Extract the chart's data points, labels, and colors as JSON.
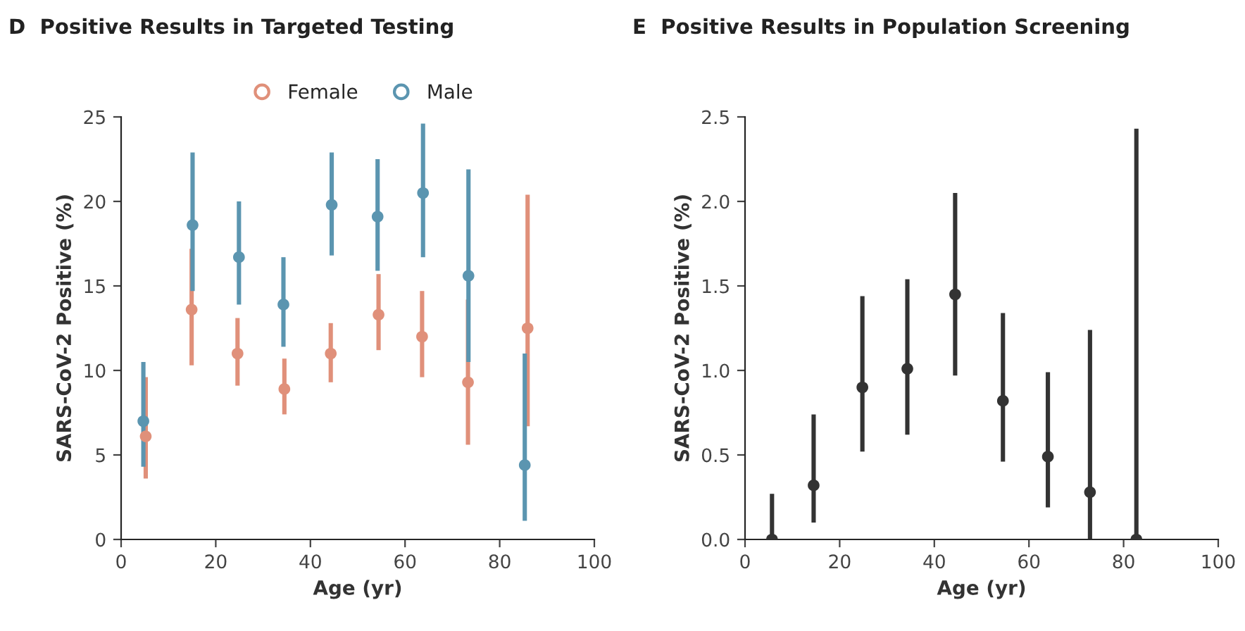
{
  "chart_data": [
    {
      "type": "scatter",
      "title": "D  Positive Results in Targeted Testing",
      "xlabel": "Age (yr)",
      "ylabel": "SARS-CoV-2 Positive (%)",
      "xlim": [
        0,
        100
      ],
      "xticks": [
        0,
        20,
        40,
        60,
        80,
        100
      ],
      "ylim": [
        0,
        25
      ],
      "yticks": [
        0,
        5,
        10,
        15,
        20,
        25
      ],
      "grid": false,
      "legend": "top",
      "marker": "circle",
      "series": [
        {
          "name": "Female",
          "color": "#e0907a",
          "x": [
            5.2,
            14.9,
            24.6,
            34.5,
            44.3,
            54.4,
            63.6,
            73.3,
            85.9
          ],
          "values": [
            6.1,
            13.6,
            11.0,
            8.9,
            11.0,
            13.3,
            12.0,
            9.3,
            12.5
          ],
          "errors": [
            [
              3.6,
              9.6
            ],
            [
              10.3,
              17.2
            ],
            [
              9.1,
              13.1
            ],
            [
              7.4,
              10.7
            ],
            [
              9.3,
              12.8
            ],
            [
              11.2,
              15.7
            ],
            [
              9.6,
              14.7
            ],
            [
              5.6,
              14.2
            ],
            [
              6.7,
              20.4
            ]
          ]
        },
        {
          "name": "Male",
          "color": "#5b95b0",
          "x": [
            4.7,
            15.1,
            24.9,
            34.3,
            44.5,
            54.2,
            63.8,
            73.4,
            85.3
          ],
          "values": [
            7.0,
            18.6,
            16.7,
            13.9,
            19.8,
            19.1,
            20.5,
            15.6,
            4.4
          ],
          "errors": [
            [
              4.3,
              10.5
            ],
            [
              14.7,
              22.9
            ],
            [
              13.9,
              20.0
            ],
            [
              11.4,
              16.7
            ],
            [
              16.8,
              22.9
            ],
            [
              15.9,
              22.5
            ],
            [
              16.7,
              24.6
            ],
            [
              10.5,
              21.9
            ],
            [
              1.1,
              11.0
            ]
          ]
        }
      ]
    },
    {
      "type": "scatter",
      "title": "E  Positive Results in Population Screening",
      "xlabel": "Age (yr)",
      "ylabel": "SARS-CoV-2 Positive (%)",
      "xlim": [
        0,
        100
      ],
      "xticks": [
        0,
        20,
        40,
        60,
        80,
        100
      ],
      "ylim": [
        0,
        2.5
      ],
      "yticks": [
        {
          "value": 0,
          "label": "0.0"
        },
        0.5,
        {
          "value": 1,
          "label": "1.0"
        },
        1.5,
        {
          "value": 2,
          "label": "2.0"
        },
        2.5
      ],
      "grid": false,
      "legend": false,
      "marker": "circle",
      "series": [
        {
          "color": "#333333",
          "x": [
            5.7,
            14.5,
            24.8,
            34.3,
            44.4,
            54.5,
            64.0,
            72.9,
            82.7
          ],
          "values": [
            0.0,
            0.32,
            0.9,
            1.01,
            1.45,
            0.82,
            0.49,
            0.28,
            0.0
          ],
          "errors": [
            [
              0.0,
              0.27
            ],
            [
              0.1,
              0.74
            ],
            [
              0.52,
              1.44
            ],
            [
              0.62,
              1.54
            ],
            [
              0.97,
              2.05
            ],
            [
              0.46,
              1.34
            ],
            [
              0.19,
              0.99
            ],
            [
              0.0,
              1.24
            ],
            [
              0.0,
              2.43
            ]
          ]
        }
      ]
    }
  ]
}
